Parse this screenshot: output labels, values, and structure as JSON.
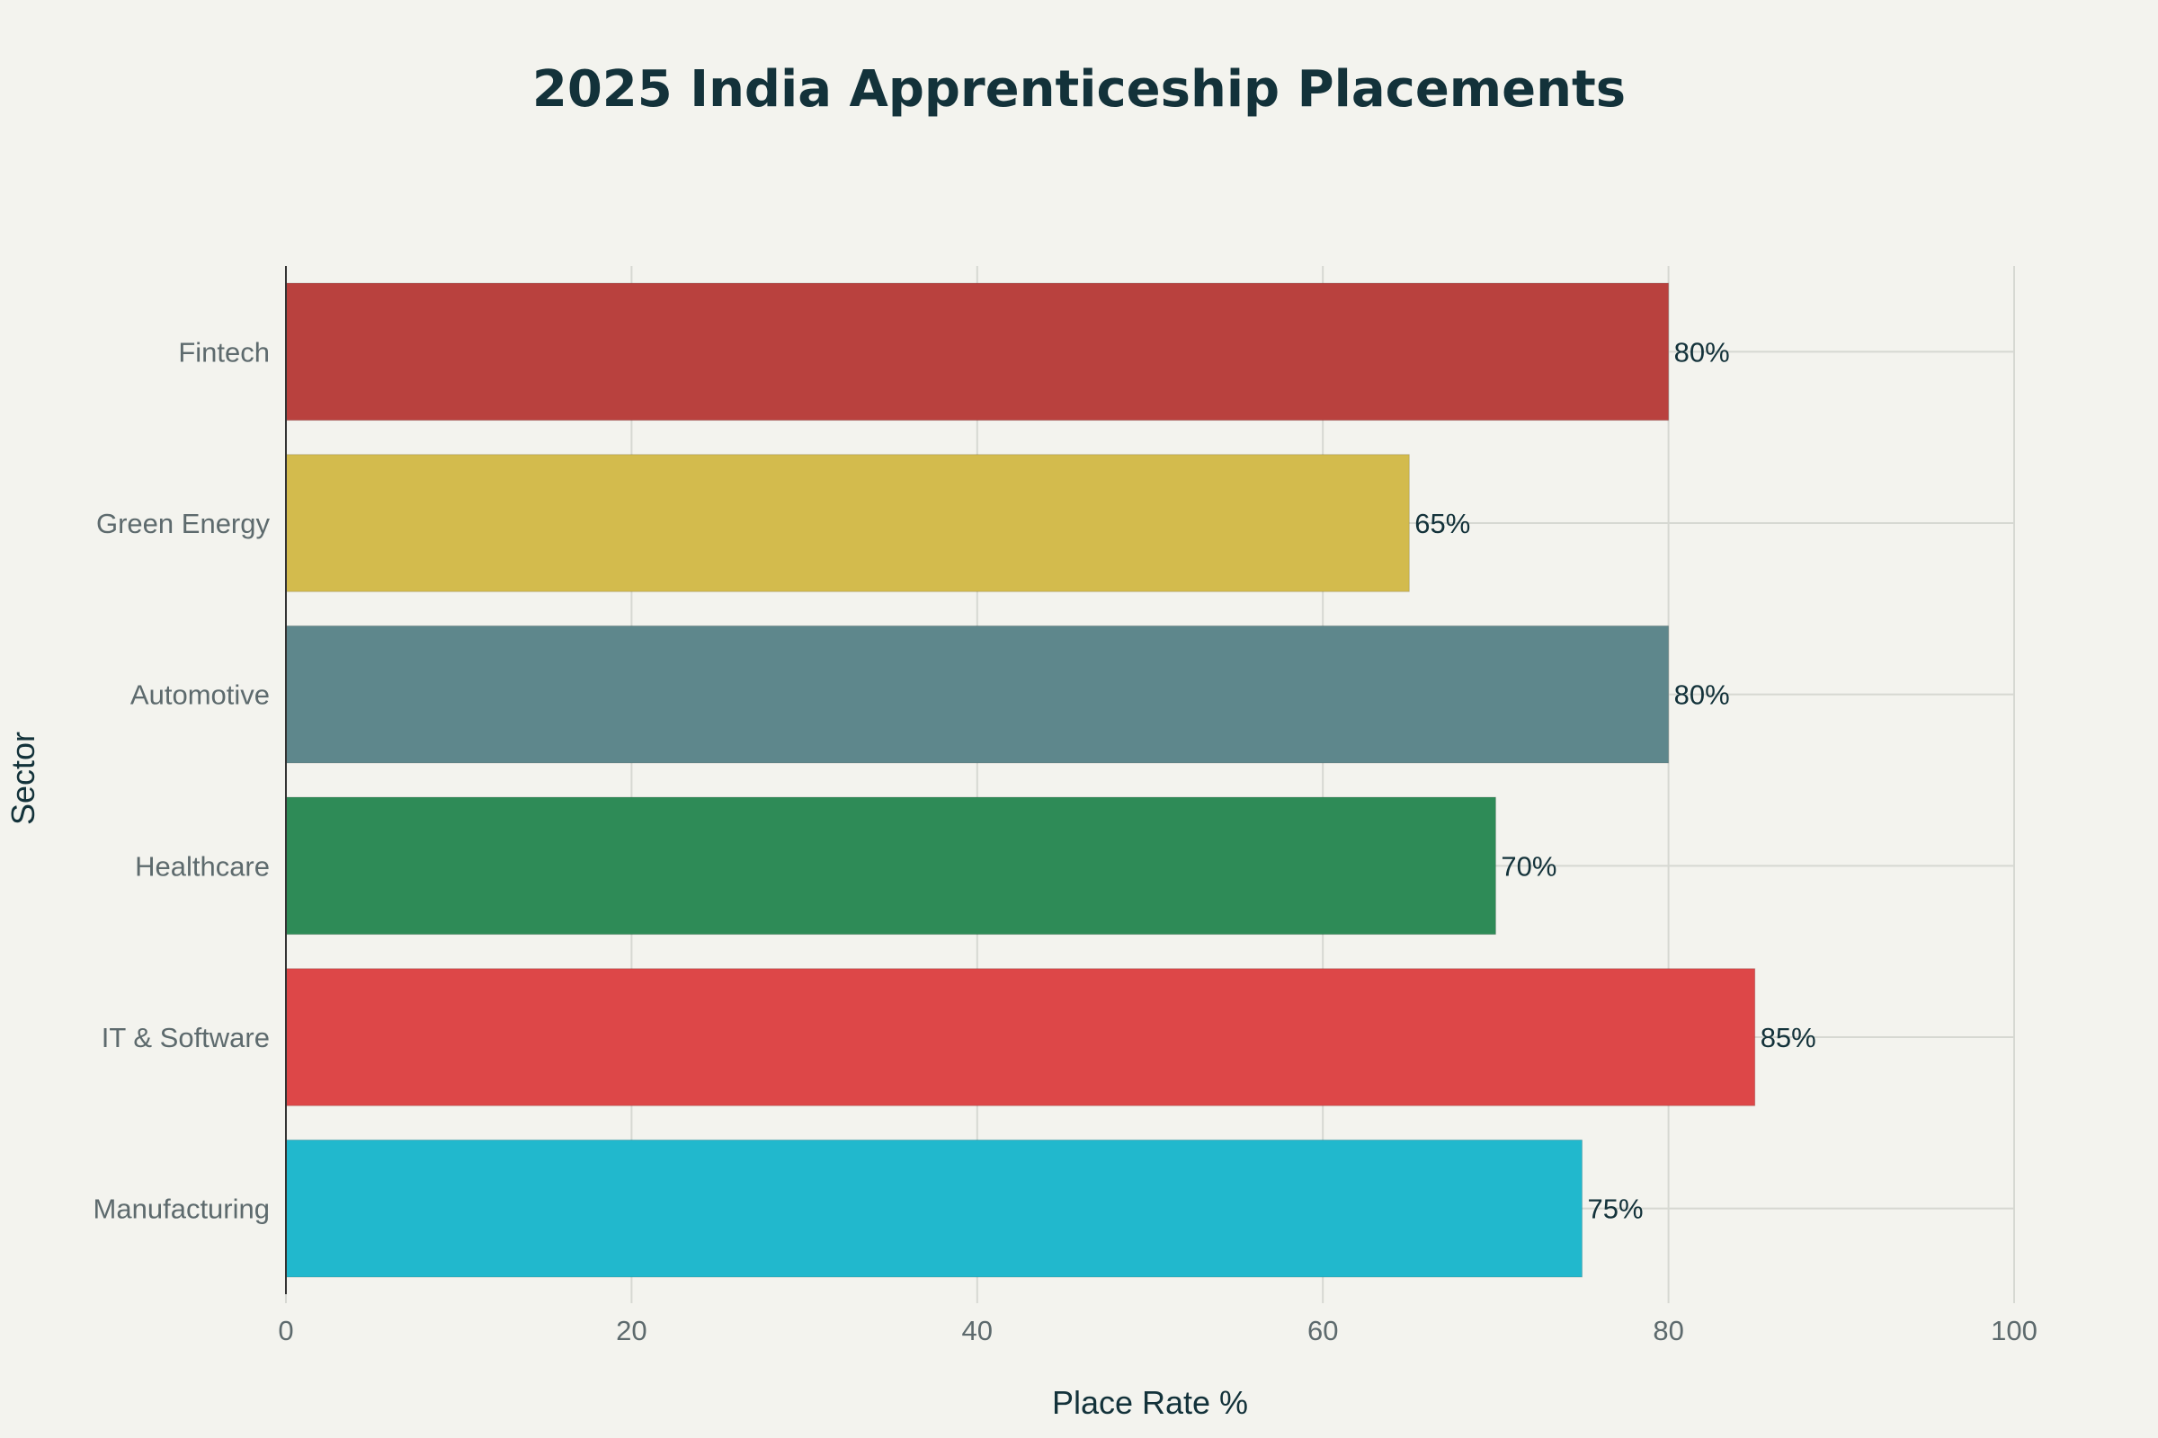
{
  "chart_data": {
    "type": "bar",
    "orientation": "horizontal",
    "title": "2025 India Apprenticeship Placements",
    "xlabel": "Place Rate %",
    "ylabel": "Sector",
    "xlim": [
      0,
      100
    ],
    "xticks": [
      0,
      20,
      40,
      60,
      80,
      100
    ],
    "grid": true,
    "categories": [
      "Manufacturing",
      "IT & Software",
      "Healthcare",
      "Automotive",
      "Green Energy",
      "Fintech"
    ],
    "values": [
      75,
      85,
      70,
      80,
      65,
      80
    ],
    "data_labels": [
      "75%",
      "85%",
      "70%",
      "80%",
      "65%",
      "80%"
    ],
    "colors": [
      "#21b8cd",
      "#dd4748",
      "#2e8b57",
      "#5e878c",
      "#d3bb4d",
      "#b9413e"
    ]
  }
}
